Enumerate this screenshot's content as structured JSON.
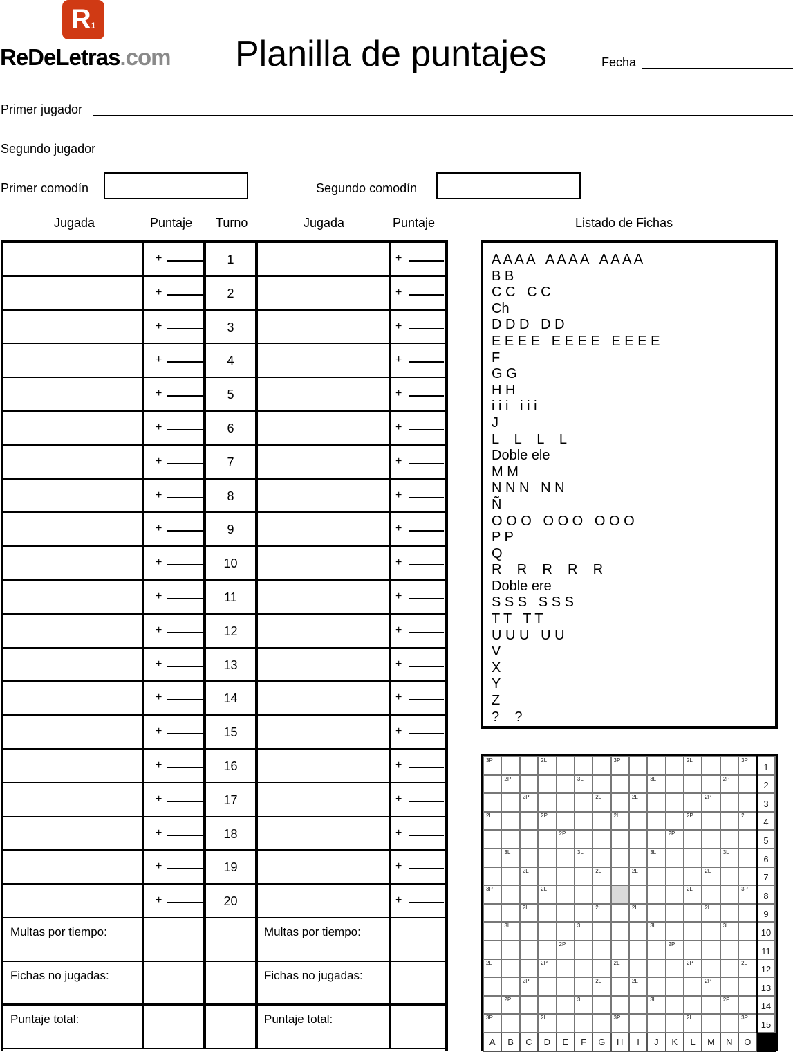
{
  "logo": {
    "mark": "R",
    "sub": "1",
    "brand": "ReDeLetras",
    "domain": ".com",
    "color": "#d03a14"
  },
  "title": "Planilla de puntajes",
  "fecha_label": "Fecha",
  "player1_label": "Primer jugador",
  "player2_label": "Segundo jugador",
  "joker1_label": "Primer comodín",
  "joker2_label": "Segundo comodín",
  "headers": {
    "jugada1": "Jugada",
    "puntaje1": "Puntaje",
    "turno": "Turno",
    "jugada2": "Jugada",
    "puntaje2": "Puntaje",
    "fichas": "Listado de Fichas"
  },
  "plus": "+",
  "turns": [
    "1",
    "2",
    "3",
    "4",
    "5",
    "6",
    "7",
    "8",
    "9",
    "10",
    "11",
    "12",
    "13",
    "14",
    "15",
    "16",
    "17",
    "18",
    "19",
    "20"
  ],
  "footer": [
    "Multas por tiempo:",
    "Fichas no jugadas:",
    "Puntaje total:"
  ],
  "tiles": [
    "A A A A   A A A A   A A A A",
    "B B",
    "C C   C C",
    "Ch",
    "D D D   D D",
    "E E E E   E E E E   E E E E",
    "F",
    "G G",
    "H H",
    "i i i   i i i",
    "J",
    "L    L    L    L",
    "Doble ele",
    "M M",
    "N N N   N N",
    "Ñ",
    "O O O   O O O   O O O",
    "P P",
    "Q",
    "R    R    R    R    R",
    "Doble ere",
    "S S S   S S S",
    "T T   T T",
    "U U U   U U",
    "V",
    "X",
    "Y",
    "Z",
    "?    ?"
  ],
  "board": {
    "rows": [
      [
        "3P",
        "",
        "",
        "2L",
        "",
        "",
        "",
        "3P",
        "",
        "",
        "",
        "2L",
        "",
        "",
        "3P"
      ],
      [
        "",
        "2P",
        "",
        "",
        "",
        "3L",
        "",
        "",
        "",
        "3L",
        "",
        "",
        "",
        "2P",
        ""
      ],
      [
        "",
        "",
        "2P",
        "",
        "",
        "",
        "2L",
        "",
        "2L",
        "",
        "",
        "",
        "2P",
        "",
        ""
      ],
      [
        "2L",
        "",
        "",
        "2P",
        "",
        "",
        "",
        "2L",
        "",
        "",
        "",
        "2P",
        "",
        "",
        "2L"
      ],
      [
        "",
        "",
        "",
        "",
        "2P",
        "",
        "",
        "",
        "",
        "",
        "2P",
        "",
        "",
        "",
        ""
      ],
      [
        "",
        "3L",
        "",
        "",
        "",
        "3L",
        "",
        "",
        "",
        "3L",
        "",
        "",
        "",
        "3L",
        ""
      ],
      [
        "",
        "",
        "2L",
        "",
        "",
        "",
        "2L",
        "",
        "2L",
        "",
        "",
        "",
        "2L",
        "",
        ""
      ],
      [
        "3P",
        "",
        "",
        "2L",
        "",
        "",
        "",
        "",
        "",
        "",
        "",
        "2L",
        "",
        "",
        "3P"
      ],
      [
        "",
        "",
        "2L",
        "",
        "",
        "",
        "2L",
        "",
        "2L",
        "",
        "",
        "",
        "2L",
        "",
        ""
      ],
      [
        "",
        "3L",
        "",
        "",
        "",
        "3L",
        "",
        "",
        "",
        "3L",
        "",
        "",
        "",
        "3L",
        ""
      ],
      [
        "",
        "",
        "",
        "",
        "2P",
        "",
        "",
        "",
        "",
        "",
        "2P",
        "",
        "",
        "",
        ""
      ],
      [
        "2L",
        "",
        "",
        "2P",
        "",
        "",
        "",
        "2L",
        "",
        "",
        "",
        "2P",
        "",
        "",
        "2L"
      ],
      [
        "",
        "",
        "2P",
        "",
        "",
        "",
        "2L",
        "",
        "2L",
        "",
        "",
        "",
        "2P",
        "",
        ""
      ],
      [
        "",
        "2P",
        "",
        "",
        "",
        "3L",
        "",
        "",
        "",
        "3L",
        "",
        "",
        "",
        "2P",
        ""
      ],
      [
        "3P",
        "",
        "",
        "2L",
        "",
        "",
        "",
        "3P",
        "",
        "",
        "",
        "2L",
        "",
        "",
        "3P"
      ]
    ],
    "columns": [
      "A",
      "B",
      "C",
      "D",
      "E",
      "F",
      "G",
      "H",
      "I",
      "J",
      "K",
      "L",
      "M",
      "N",
      "O"
    ],
    "center_color": "#d9d9d9"
  }
}
